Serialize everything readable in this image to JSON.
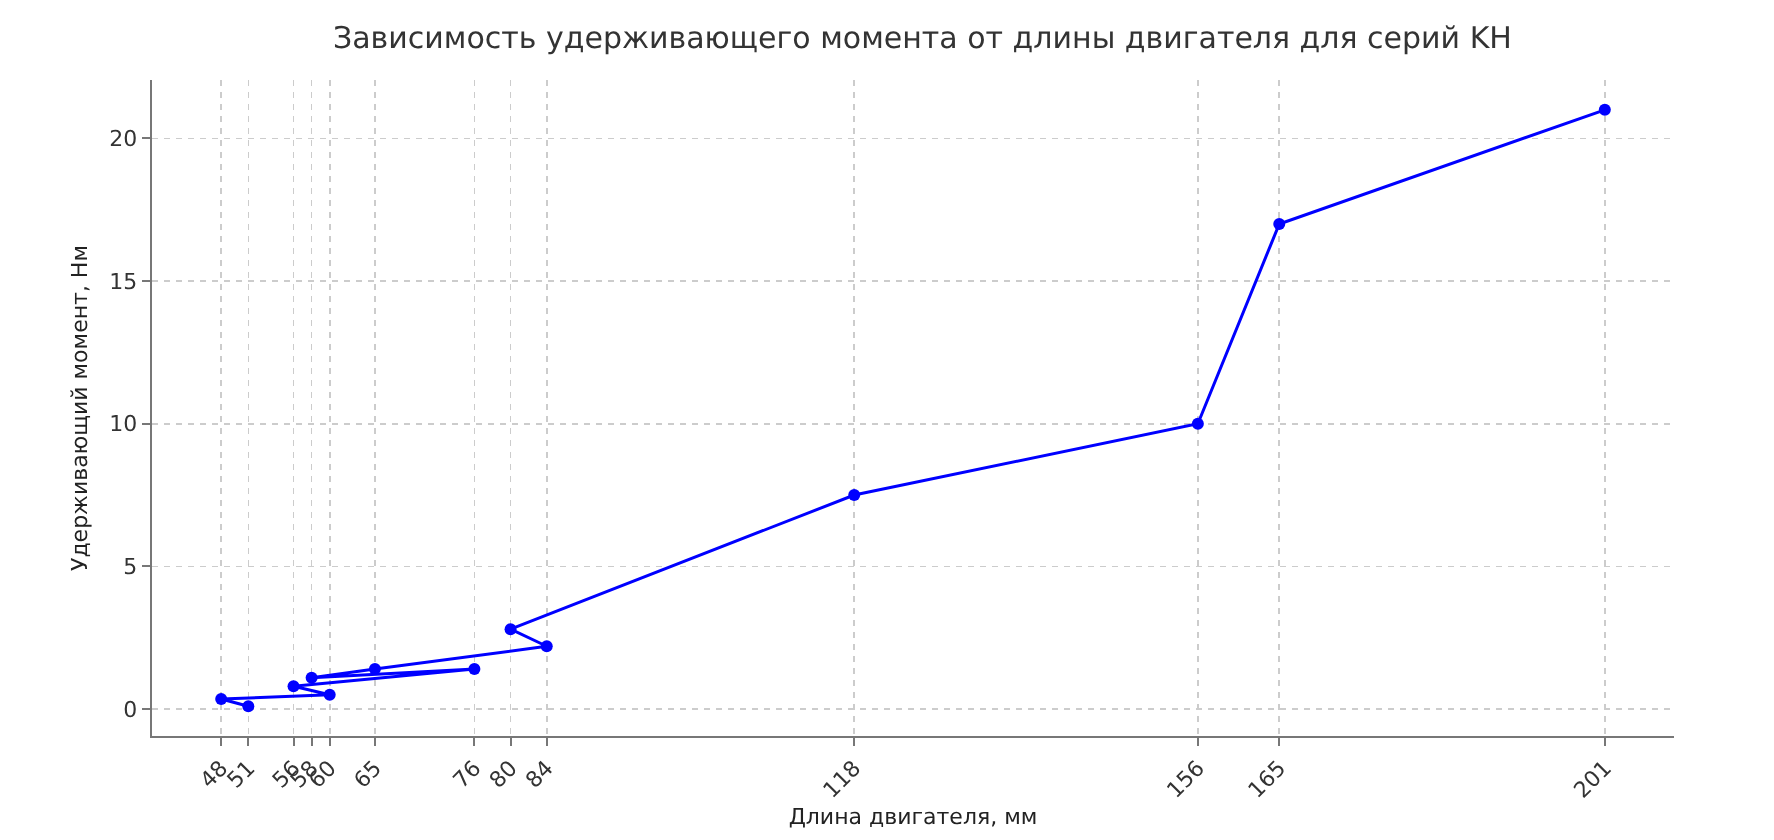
{
  "chart_data": {
    "type": "line",
    "title": "Зависимость удерживающего момента от длины двигателя для серий KH",
    "xlabel": "Длина двигателя, мм",
    "ylabel": "Удерживающий момент, Нм",
    "x": [
      51,
      48,
      60,
      56,
      76,
      58,
      65,
      84,
      80,
      118,
      156,
      165,
      201
    ],
    "series": [
      {
        "color": "#0000ff",
        "values": [
          0.1,
          0.35,
          0.5,
          0.8,
          1.4,
          1.1,
          1.4,
          2.2,
          2.8,
          7.5,
          10,
          17,
          21
        ]
      }
    ],
    "xlim": [
      40.35,
      208.65
    ],
    "ylim": [
      -0.945,
      22.045
    ],
    "xticks": [
      48,
      51,
      56,
      58,
      60,
      65,
      76,
      80,
      84,
      118,
      156,
      165,
      201
    ],
    "yticks": [
      0,
      5,
      10,
      15,
      20
    ],
    "grid": true,
    "marker": "circle",
    "line_style": "solid"
  }
}
